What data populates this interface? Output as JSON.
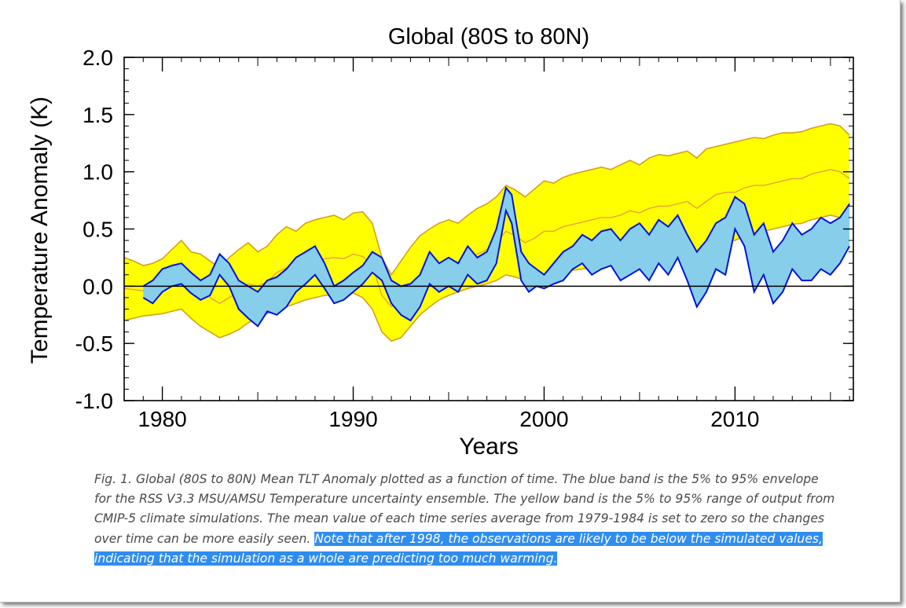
{
  "colors": {
    "yellow_band": "#ffff00",
    "yellow_edge": "#d6a019",
    "blue_band": "#87ceeb",
    "blue_edge": "#0014d8",
    "model_mean": "#e7a23a",
    "axis": "#000000"
  },
  "chart_data": {
    "type": "area",
    "title": "Global (80S to 80N)",
    "xlabel": "Years",
    "ylabel": "Temperature Anomaly (K)",
    "xlim": [
      1978,
      2016.2
    ],
    "ylim": [
      -1.0,
      2.0
    ],
    "xticks": [
      1980,
      1990,
      2000,
      2010
    ],
    "yticks": [
      -1.0,
      -0.5,
      0.0,
      0.5,
      1.0,
      1.5,
      2.0
    ],
    "ytick_labels": [
      "-1.0",
      "-0.5",
      "0.0",
      "0.5",
      "1.0",
      "1.5",
      "2.0"
    ],
    "reference_line": 0.0,
    "grid": false,
    "legend": "none",
    "series": [
      {
        "band": "CMIP-5 5% to 95% range",
        "x": [
          1978.0,
          1978.5,
          1979.0,
          1979.5,
          1980.0,
          1980.5,
          1981.0,
          1981.5,
          1982.0,
          1982.5,
          1983.0,
          1983.5,
          1984.0,
          1984.5,
          1985.0,
          1985.5,
          1986.0,
          1986.5,
          1987.0,
          1987.5,
          1988.0,
          1988.5,
          1989.0,
          1989.5,
          1990.0,
          1990.5,
          1991.0,
          1991.5,
          1992.0,
          1992.5,
          1993.0,
          1993.5,
          1994.0,
          1994.5,
          1995.0,
          1995.5,
          1996.0,
          1996.5,
          1997.0,
          1997.5,
          1998.0,
          1998.5,
          1999.0,
          1999.5,
          2000.0,
          2000.5,
          2001.0,
          2001.5,
          2002.0,
          2002.5,
          2003.0,
          2003.5,
          2004.0,
          2004.5,
          2005.0,
          2005.5,
          2006.0,
          2006.5,
          2007.0,
          2007.5,
          2008.0,
          2008.5,
          2009.0,
          2009.5,
          2010.0,
          2010.5,
          2011.0,
          2011.5,
          2012.0,
          2012.5,
          2013.0,
          2013.5,
          2014.0,
          2014.5,
          2015.0,
          2015.5,
          2016.0
        ],
        "upper": [
          0.25,
          0.22,
          0.18,
          0.2,
          0.24,
          0.32,
          0.4,
          0.3,
          0.28,
          0.22,
          0.16,
          0.25,
          0.32,
          0.38,
          0.3,
          0.35,
          0.45,
          0.52,
          0.48,
          0.55,
          0.58,
          0.6,
          0.62,
          0.58,
          0.64,
          0.65,
          0.55,
          0.25,
          0.1,
          0.22,
          0.34,
          0.44,
          0.5,
          0.55,
          0.58,
          0.55,
          0.62,
          0.68,
          0.72,
          0.78,
          0.88,
          0.84,
          0.78,
          0.85,
          0.92,
          0.9,
          0.95,
          0.98,
          1.0,
          1.02,
          1.04,
          1.02,
          1.06,
          1.1,
          1.06,
          1.12,
          1.15,
          1.14,
          1.16,
          1.18,
          1.12,
          1.2,
          1.22,
          1.24,
          1.26,
          1.28,
          1.3,
          1.29,
          1.32,
          1.34,
          1.34,
          1.35,
          1.38,
          1.4,
          1.42,
          1.4,
          1.32
        ],
        "lower": [
          -0.3,
          -0.28,
          -0.26,
          -0.25,
          -0.24,
          -0.22,
          -0.2,
          -0.28,
          -0.35,
          -0.4,
          -0.45,
          -0.42,
          -0.38,
          -0.32,
          -0.28,
          -0.24,
          -0.2,
          -0.18,
          -0.15,
          -0.12,
          -0.1,
          -0.08,
          -0.08,
          -0.06,
          -0.06,
          -0.1,
          -0.2,
          -0.4,
          -0.48,
          -0.45,
          -0.35,
          -0.25,
          -0.18,
          -0.12,
          -0.08,
          -0.05,
          -0.02,
          0.0,
          0.02,
          0.05,
          0.1,
          0.08,
          0.05,
          0.06,
          0.08,
          0.1,
          0.12,
          0.14,
          0.15,
          0.16,
          0.18,
          0.2,
          0.2,
          0.22,
          0.24,
          0.26,
          0.26,
          0.28,
          0.3,
          0.32,
          0.25,
          0.3,
          0.38,
          0.42,
          0.4,
          0.44,
          0.46,
          0.48,
          0.5,
          0.52,
          0.54,
          0.55,
          0.58,
          0.6,
          0.62,
          0.6,
          0.55
        ],
        "mean": [
          -0.02,
          -0.03,
          -0.04,
          -0.02,
          0.0,
          0.04,
          0.08,
          0.0,
          -0.04,
          -0.1,
          -0.15,
          -0.1,
          -0.05,
          0.02,
          0.0,
          0.04,
          0.12,
          0.16,
          0.14,
          0.2,
          0.22,
          0.24,
          0.25,
          0.24,
          0.28,
          0.26,
          0.18,
          -0.08,
          -0.18,
          -0.12,
          0.0,
          0.08,
          0.14,
          0.18,
          0.2,
          0.21,
          0.24,
          0.28,
          0.32,
          0.38,
          0.48,
          0.44,
          0.38,
          0.42,
          0.48,
          0.48,
          0.52,
          0.54,
          0.56,
          0.58,
          0.6,
          0.6,
          0.62,
          0.66,
          0.64,
          0.68,
          0.7,
          0.7,
          0.72,
          0.74,
          0.68,
          0.74,
          0.8,
          0.82,
          0.82,
          0.86,
          0.88,
          0.88,
          0.9,
          0.92,
          0.94,
          0.94,
          0.98,
          1.0,
          1.02,
          1.0,
          0.94
        ]
      },
      {
        "band": "RSS V3.3 MSU/AMSU 5% to 95% envelope",
        "x": [
          1979.0,
          1979.5,
          1980.0,
          1980.5,
          1981.0,
          1981.5,
          1982.0,
          1982.5,
          1983.0,
          1983.5,
          1984.0,
          1984.5,
          1985.0,
          1985.5,
          1986.0,
          1986.5,
          1987.0,
          1987.5,
          1988.0,
          1988.5,
          1989.0,
          1989.5,
          1990.0,
          1990.5,
          1991.0,
          1991.5,
          1992.0,
          1992.5,
          1993.0,
          1993.5,
          1994.0,
          1994.5,
          1995.0,
          1995.5,
          1996.0,
          1996.5,
          1997.0,
          1997.5,
          1998.0,
          1998.3,
          1998.8,
          1999.2,
          1999.6,
          2000.0,
          2000.5,
          2001.0,
          2001.5,
          2002.0,
          2002.5,
          2003.0,
          2003.5,
          2004.0,
          2004.5,
          2005.0,
          2005.5,
          2006.0,
          2006.5,
          2007.0,
          2007.5,
          2008.0,
          2008.5,
          2009.0,
          2009.5,
          2010.0,
          2010.5,
          2011.0,
          2011.5,
          2012.0,
          2012.5,
          2013.0,
          2013.5,
          2014.0,
          2014.5,
          2015.0,
          2015.5,
          2016.0
        ],
        "upper": [
          0.0,
          0.05,
          0.15,
          0.18,
          0.2,
          0.12,
          0.05,
          0.1,
          0.28,
          0.2,
          0.05,
          0.0,
          -0.05,
          0.05,
          0.08,
          0.15,
          0.25,
          0.3,
          0.35,
          0.2,
          0.0,
          0.05,
          0.12,
          0.18,
          0.3,
          0.25,
          0.05,
          0.0,
          0.02,
          0.1,
          0.3,
          0.2,
          0.25,
          0.2,
          0.35,
          0.25,
          0.3,
          0.5,
          0.86,
          0.8,
          0.3,
          0.2,
          0.15,
          0.1,
          0.2,
          0.3,
          0.35,
          0.45,
          0.4,
          0.48,
          0.5,
          0.4,
          0.5,
          0.55,
          0.45,
          0.58,
          0.52,
          0.62,
          0.45,
          0.3,
          0.4,
          0.55,
          0.6,
          0.78,
          0.72,
          0.45,
          0.55,
          0.3,
          0.4,
          0.55,
          0.45,
          0.5,
          0.6,
          0.55,
          0.6,
          0.72
        ],
        "lower": [
          -0.1,
          -0.15,
          -0.05,
          0.0,
          0.02,
          -0.06,
          -0.12,
          -0.08,
          0.1,
          0.0,
          -0.2,
          -0.28,
          -0.35,
          -0.22,
          -0.25,
          -0.18,
          -0.05,
          0.02,
          0.1,
          -0.02,
          -0.15,
          -0.12,
          -0.05,
          0.02,
          0.12,
          0.05,
          -0.15,
          -0.25,
          -0.3,
          -0.18,
          0.02,
          -0.05,
          0.0,
          -0.05,
          0.1,
          0.02,
          0.05,
          0.2,
          0.66,
          0.55,
          0.05,
          -0.05,
          0.0,
          -0.02,
          0.02,
          0.05,
          0.15,
          0.2,
          0.1,
          0.15,
          0.18,
          0.05,
          0.1,
          0.15,
          0.05,
          0.2,
          0.1,
          0.25,
          0.05,
          -0.18,
          -0.05,
          0.15,
          0.1,
          0.5,
          0.35,
          -0.05,
          0.1,
          -0.15,
          -0.05,
          0.15,
          0.05,
          0.05,
          0.15,
          0.1,
          0.2,
          0.35
        ]
      }
    ]
  },
  "caption": {
    "normal": "Fig. 1.  Global (80S to 80N) Mean TLT Anomaly plotted as a function of time.  The blue band is the 5% to 95% envelope for the RSS V3.3 MSU/AMSU Temperature uncertainty ensemble.  The yellow band is the 5% to 95% range of output from CMIP-5 climate simulations.  The mean value of each time series average from 1979-1984 is set to zero so the changes over time can be more easily seen. ",
    "highlight": " Note that after 1998, the observations are likely to be below the simulated values, indicating that the simulation as a whole are predicting too much warming."
  }
}
